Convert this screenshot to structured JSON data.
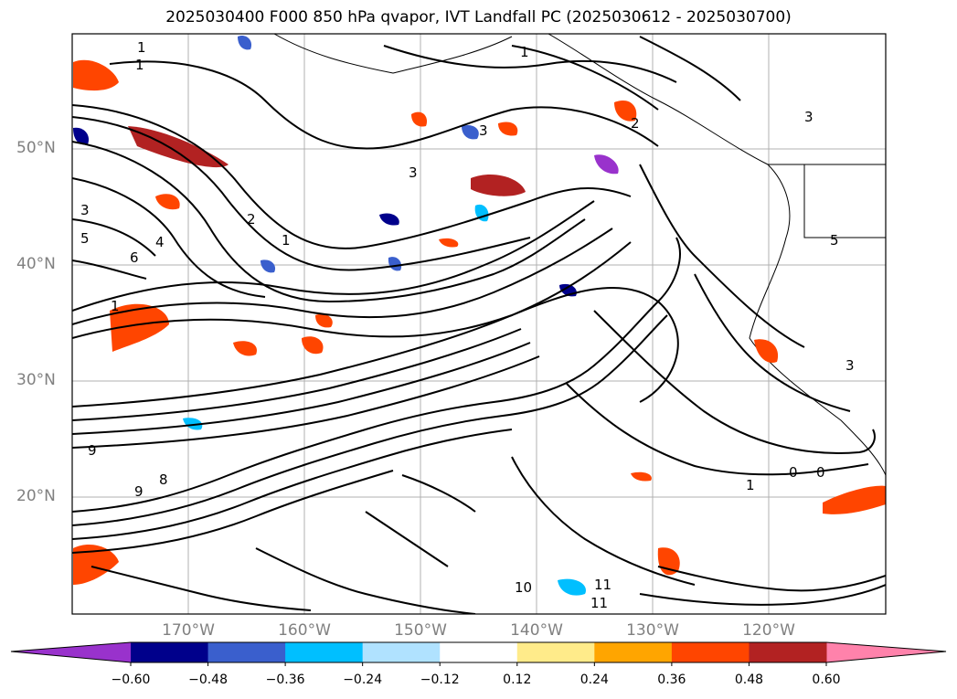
{
  "title": "2025030400 F000 850 hPa qvapor, IVT Landfall PC (2025030612 - 2025030700)",
  "lat_labels": [
    "50°N",
    "40°N",
    "30°N",
    "20°N"
  ],
  "lon_labels": [
    "170°W",
    "160°W",
    "150°W",
    "140°W",
    "130°W",
    "120°W"
  ],
  "colorbar": {
    "ticks": [
      "−0.60",
      "−0.48",
      "−0.36",
      "−0.24",
      "−0.12",
      "0.12",
      "0.24",
      "0.36",
      "0.48",
      "0.60"
    ],
    "colors": [
      "#9932cc",
      "#00008b",
      "#3a5fcd",
      "#00bfff",
      "#b0e2ff",
      "#ffffff",
      "#ffeb8a",
      "#ffa500",
      "#ff4500",
      "#b22222",
      "#ff82ab"
    ]
  },
  "contour_labels": [
    "1",
    "1",
    "3",
    "3",
    "3",
    "2",
    "1",
    "1",
    "0",
    "0",
    "1",
    "11",
    "11",
    "10",
    "9",
    "9",
    "5",
    "6",
    "4",
    "3",
    "2",
    "1",
    "8",
    "3",
    "5"
  ]
}
